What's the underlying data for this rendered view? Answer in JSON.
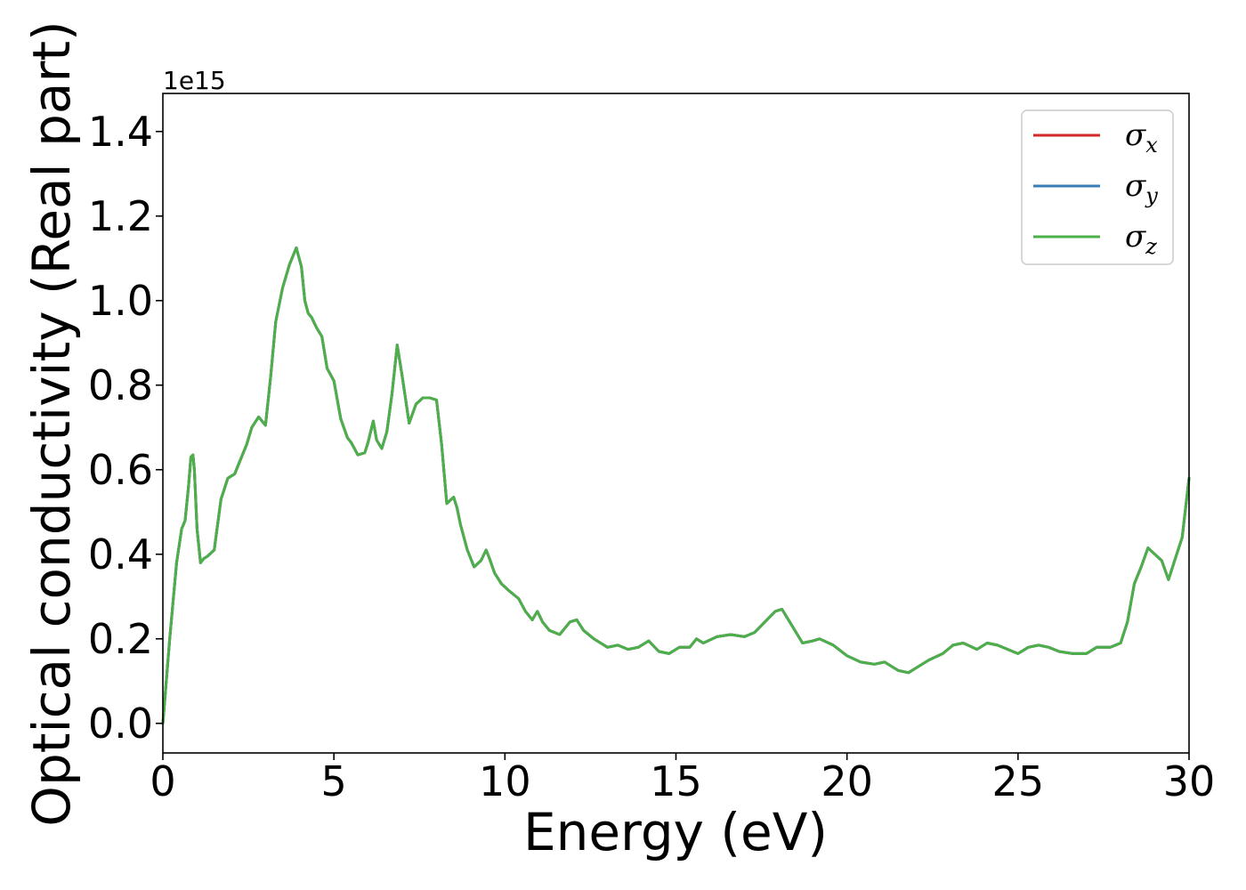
{
  "chart_data": {
    "type": "line",
    "xlabel": "Energy (eV)",
    "ylabel": "Optical conductivity (Real part)",
    "y_offset_label": "1e15",
    "xlim": [
      0,
      30
    ],
    "ylim": [
      -0.07,
      1.49
    ],
    "x_ticks": [
      0,
      5,
      10,
      15,
      20,
      25,
      30
    ],
    "x_tick_labels": [
      "0",
      "5",
      "10",
      "15",
      "20",
      "25",
      "30"
    ],
    "y_ticks": [
      0.0,
      0.2,
      0.4,
      0.6,
      0.8,
      1.0,
      1.2,
      1.4
    ],
    "y_tick_labels": [
      "0.0",
      "0.2",
      "0.4",
      "0.6",
      "0.8",
      "1.0",
      "1.2",
      "1.4"
    ],
    "grid": false,
    "legend_position": "top-right",
    "legend": [
      {
        "symbol": "σ",
        "subscript": "x",
        "color": "#d62728"
      },
      {
        "symbol": "σ",
        "subscript": "y",
        "color": "#377eb8"
      },
      {
        "symbol": "σ",
        "subscript": "z",
        "color": "#4daf4a"
      }
    ],
    "x": [
      0,
      0.2,
      0.4,
      0.55,
      0.65,
      0.75,
      0.82,
      0.88,
      0.92,
      1.0,
      1.1,
      1.2,
      1.3,
      1.5,
      1.7,
      1.9,
      2.1,
      2.3,
      2.45,
      2.6,
      2.8,
      3.0,
      3.15,
      3.3,
      3.5,
      3.7,
      3.9,
      4.05,
      4.15,
      4.25,
      4.35,
      4.5,
      4.65,
      4.8,
      5.0,
      5.2,
      5.4,
      5.5,
      5.7,
      5.9,
      6.0,
      6.15,
      6.25,
      6.4,
      6.55,
      6.7,
      6.85,
      7.0,
      7.2,
      7.4,
      7.6,
      7.8,
      8.0,
      8.15,
      8.3,
      8.5,
      8.6,
      8.7,
      8.9,
      9.1,
      9.3,
      9.45,
      9.55,
      9.7,
      9.9,
      10.1,
      10.4,
      10.6,
      10.8,
      10.95,
      11.1,
      11.3,
      11.6,
      11.9,
      12.1,
      12.3,
      12.6,
      12.8,
      13.0,
      13.3,
      13.6,
      13.9,
      14.2,
      14.5,
      14.8,
      15.1,
      15.4,
      15.6,
      15.8,
      16.2,
      16.6,
      17.0,
      17.3,
      17.6,
      17.9,
      18.1,
      18.4,
      18.7,
      19.0,
      19.2,
      19.6,
      20.0,
      20.4,
      20.8,
      21.1,
      21.5,
      21.8,
      22.0,
      22.4,
      22.8,
      23.1,
      23.4,
      23.8,
      24.1,
      24.4,
      24.7,
      25.0,
      25.3,
      25.6,
      25.9,
      26.2,
      26.6,
      27.0,
      27.3,
      27.7,
      28.0,
      28.2,
      28.4,
      28.6,
      28.8,
      29.0,
      29.2,
      29.4,
      29.6,
      29.8,
      30.0
    ],
    "series": [
      {
        "name": "σx",
        "color": "#d62728",
        "y": [
          0.0,
          0.2,
          0.38,
          0.46,
          0.48,
          0.56,
          0.63,
          0.635,
          0.6,
          0.46,
          0.38,
          0.39,
          0.395,
          0.41,
          0.53,
          0.58,
          0.59,
          0.63,
          0.66,
          0.7,
          0.725,
          0.705,
          0.82,
          0.95,
          1.03,
          1.085,
          1.125,
          1.08,
          1.0,
          0.97,
          0.96,
          0.935,
          0.915,
          0.84,
          0.81,
          0.72,
          0.675,
          0.665,
          0.635,
          0.64,
          0.665,
          0.715,
          0.67,
          0.65,
          0.69,
          0.78,
          0.895,
          0.82,
          0.71,
          0.755,
          0.77,
          0.77,
          0.765,
          0.66,
          0.52,
          0.535,
          0.51,
          0.47,
          0.41,
          0.37,
          0.385,
          0.41,
          0.39,
          0.355,
          0.33,
          0.315,
          0.295,
          0.265,
          0.245,
          0.265,
          0.24,
          0.22,
          0.21,
          0.24,
          0.245,
          0.22,
          0.2,
          0.19,
          0.18,
          0.185,
          0.175,
          0.18,
          0.195,
          0.17,
          0.165,
          0.18,
          0.18,
          0.2,
          0.19,
          0.205,
          0.21,
          0.205,
          0.215,
          0.24,
          0.265,
          0.27,
          0.23,
          0.19,
          0.195,
          0.2,
          0.185,
          0.16,
          0.145,
          0.14,
          0.145,
          0.125,
          0.12,
          0.13,
          0.15,
          0.165,
          0.185,
          0.19,
          0.175,
          0.19,
          0.185,
          0.175,
          0.165,
          0.18,
          0.185,
          0.18,
          0.17,
          0.165,
          0.165,
          0.18,
          0.18,
          0.19,
          0.24,
          0.33,
          0.37,
          0.415,
          0.4,
          0.385,
          0.34,
          0.39,
          0.44,
          0.58
        ]
      },
      {
        "name": "σy",
        "color": "#377eb8",
        "y": [
          0.0,
          0.2,
          0.38,
          0.46,
          0.48,
          0.56,
          0.63,
          0.635,
          0.6,
          0.46,
          0.38,
          0.39,
          0.395,
          0.41,
          0.53,
          0.58,
          0.59,
          0.63,
          0.66,
          0.7,
          0.725,
          0.705,
          0.82,
          0.95,
          1.03,
          1.085,
          1.125,
          1.08,
          1.0,
          0.97,
          0.96,
          0.935,
          0.915,
          0.84,
          0.81,
          0.72,
          0.675,
          0.665,
          0.635,
          0.64,
          0.665,
          0.715,
          0.67,
          0.65,
          0.69,
          0.78,
          0.895,
          0.82,
          0.71,
          0.755,
          0.77,
          0.77,
          0.765,
          0.66,
          0.52,
          0.535,
          0.51,
          0.47,
          0.41,
          0.37,
          0.385,
          0.41,
          0.39,
          0.355,
          0.33,
          0.315,
          0.295,
          0.265,
          0.245,
          0.265,
          0.24,
          0.22,
          0.21,
          0.24,
          0.245,
          0.22,
          0.2,
          0.19,
          0.18,
          0.185,
          0.175,
          0.18,
          0.195,
          0.17,
          0.165,
          0.18,
          0.18,
          0.2,
          0.19,
          0.205,
          0.21,
          0.205,
          0.215,
          0.24,
          0.265,
          0.27,
          0.23,
          0.19,
          0.195,
          0.2,
          0.185,
          0.16,
          0.145,
          0.14,
          0.145,
          0.125,
          0.12,
          0.13,
          0.15,
          0.165,
          0.185,
          0.19,
          0.175,
          0.19,
          0.185,
          0.175,
          0.165,
          0.18,
          0.185,
          0.18,
          0.17,
          0.165,
          0.165,
          0.18,
          0.18,
          0.19,
          0.24,
          0.33,
          0.37,
          0.415,
          0.4,
          0.385,
          0.34,
          0.39,
          0.44,
          0.58
        ]
      },
      {
        "name": "σz",
        "color": "#4daf4a",
        "y": [
          0.0,
          0.2,
          0.38,
          0.46,
          0.48,
          0.56,
          0.63,
          0.635,
          0.6,
          0.46,
          0.38,
          0.39,
          0.395,
          0.41,
          0.53,
          0.58,
          0.59,
          0.63,
          0.66,
          0.7,
          0.725,
          0.705,
          0.82,
          0.95,
          1.03,
          1.085,
          1.125,
          1.08,
          1.0,
          0.97,
          0.96,
          0.935,
          0.915,
          0.84,
          0.81,
          0.72,
          0.675,
          0.665,
          0.635,
          0.64,
          0.665,
          0.715,
          0.67,
          0.65,
          0.69,
          0.78,
          0.895,
          0.82,
          0.71,
          0.755,
          0.77,
          0.77,
          0.765,
          0.66,
          0.52,
          0.535,
          0.51,
          0.47,
          0.41,
          0.37,
          0.385,
          0.41,
          0.39,
          0.355,
          0.33,
          0.315,
          0.295,
          0.265,
          0.245,
          0.265,
          0.24,
          0.22,
          0.21,
          0.24,
          0.245,
          0.22,
          0.2,
          0.19,
          0.18,
          0.185,
          0.175,
          0.18,
          0.195,
          0.17,
          0.165,
          0.18,
          0.18,
          0.2,
          0.19,
          0.205,
          0.21,
          0.205,
          0.215,
          0.24,
          0.265,
          0.27,
          0.23,
          0.19,
          0.195,
          0.2,
          0.185,
          0.16,
          0.145,
          0.14,
          0.145,
          0.125,
          0.12,
          0.13,
          0.15,
          0.165,
          0.185,
          0.19,
          0.175,
          0.19,
          0.185,
          0.175,
          0.165,
          0.18,
          0.185,
          0.18,
          0.17,
          0.165,
          0.165,
          0.18,
          0.18,
          0.19,
          0.24,
          0.33,
          0.37,
          0.415,
          0.4,
          0.385,
          0.34,
          0.39,
          0.44,
          0.58
        ]
      }
    ]
  }
}
